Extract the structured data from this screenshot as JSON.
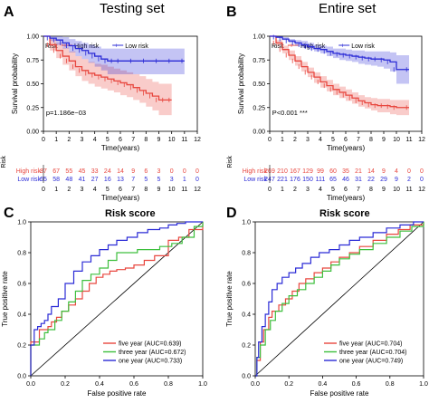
{
  "panels": {
    "A": {
      "letter": "A",
      "title": "Testing set"
    },
    "B": {
      "letter": "B",
      "title": "Entire set"
    },
    "C": {
      "letter": "C",
      "title": "Risk score"
    },
    "D": {
      "letter": "D",
      "title": "Risk score"
    }
  },
  "colors": {
    "high": "#e8473f",
    "low": "#2b2bd6",
    "five": "#e8473f",
    "three": "#3dbf3d",
    "one": "#2b2bd6",
    "diag": "#000000"
  },
  "chart_data": [
    {
      "id": "A",
      "type": "line",
      "title": "Testing set",
      "xlabel": "Time(years)",
      "ylabel": "Survival probability",
      "xlim": [
        0,
        12
      ],
      "ylim": [
        0,
        1
      ],
      "xticks": [
        "0",
        "1",
        "2",
        "3",
        "4",
        "5",
        "6",
        "7",
        "8",
        "9",
        "10",
        "11",
        "12"
      ],
      "yticks": [
        "0.00",
        "0.25",
        "0.50",
        "0.75",
        "1.00"
      ],
      "legend_title": "Risk",
      "series": [
        {
          "name": "High risk",
          "x": [
            0,
            0.5,
            1,
            1.5,
            2,
            2.5,
            3,
            3.5,
            4,
            4.5,
            5,
            5.5,
            6,
            6.5,
            7,
            7.5,
            8,
            8.5,
            9,
            9.5,
            10
          ],
          "y": [
            1,
            0.91,
            0.85,
            0.79,
            0.74,
            0.68,
            0.64,
            0.61,
            0.59,
            0.57,
            0.55,
            0.53,
            0.51,
            0.49,
            0.46,
            0.43,
            0.4,
            0.37,
            0.33,
            0.33,
            0.33
          ],
          "lo": [
            1,
            0.85,
            0.77,
            0.7,
            0.64,
            0.58,
            0.53,
            0.5,
            0.47,
            0.45,
            0.43,
            0.41,
            0.38,
            0.36,
            0.33,
            0.3,
            0.26,
            0.22,
            0.17,
            0.17,
            0.17
          ],
          "hi": [
            1,
            0.97,
            0.93,
            0.88,
            0.84,
            0.79,
            0.76,
            0.73,
            0.71,
            0.7,
            0.68,
            0.66,
            0.64,
            0.62,
            0.6,
            0.58,
            0.55,
            0.52,
            0.5,
            0.5,
            0.5
          ]
        },
        {
          "name": "Low risk",
          "x": [
            0,
            0.5,
            1,
            1.5,
            2,
            2.5,
            3,
            3.5,
            4,
            4.5,
            5,
            5.5,
            6,
            7,
            8,
            9,
            10,
            11
          ],
          "y": [
            1,
            0.98,
            0.96,
            0.93,
            0.9,
            0.87,
            0.85,
            0.82,
            0.79,
            0.76,
            0.74,
            0.74,
            0.74,
            0.74,
            0.74,
            0.74,
            0.74,
            0.74
          ],
          "lo": [
            1,
            0.95,
            0.91,
            0.87,
            0.83,
            0.79,
            0.76,
            0.72,
            0.68,
            0.64,
            0.6,
            0.6,
            0.6,
            0.6,
            0.6,
            0.6,
            0.6,
            0.6
          ],
          "hi": [
            1,
            1,
            1,
            0.99,
            0.97,
            0.95,
            0.93,
            0.91,
            0.89,
            0.87,
            0.87,
            0.87,
            0.87,
            0.87,
            0.87,
            0.87,
            0.87,
            0.87
          ]
        }
      ],
      "annotation": "p=1.186e−03",
      "risk_table": {
        "label": "Risk",
        "rows": [
          {
            "name": "High risk",
            "counts": [
              "87",
              "67",
              "55",
              "45",
              "33",
              "24",
              "14",
              "9",
              "6",
              "3",
              "0",
              "0",
              "0"
            ]
          },
          {
            "name": "Low risk",
            "counts": [
              "65",
              "58",
              "48",
              "41",
              "27",
              "16",
              "13",
              "7",
              "5",
              "5",
              "3",
              "1",
              "0"
            ]
          }
        ]
      }
    },
    {
      "id": "B",
      "type": "line",
      "title": "Entire set",
      "xlabel": "Time(years)",
      "ylabel": "Survival probability",
      "xlim": [
        0,
        12
      ],
      "ylim": [
        0,
        1
      ],
      "xticks": [
        "0",
        "1",
        "2",
        "3",
        "4",
        "5",
        "6",
        "7",
        "8",
        "9",
        "10",
        "11",
        "12"
      ],
      "yticks": [
        "0.00",
        "0.25",
        "0.50",
        "0.75",
        "1.00"
      ],
      "legend_title": "Risk",
      "series": [
        {
          "name": "High risk",
          "x": [
            0,
            0.5,
            1,
            1.5,
            2,
            2.5,
            3,
            3.5,
            4,
            4.5,
            5,
            5.5,
            6,
            6.5,
            7,
            7.5,
            8,
            8.5,
            9,
            9.5,
            10,
            11
          ],
          "y": [
            1,
            0.93,
            0.86,
            0.8,
            0.74,
            0.68,
            0.62,
            0.57,
            0.52,
            0.48,
            0.44,
            0.41,
            0.38,
            0.35,
            0.32,
            0.3,
            0.28,
            0.27,
            0.27,
            0.26,
            0.25,
            0.25
          ],
          "lo": [
            1,
            0.9,
            0.82,
            0.75,
            0.69,
            0.63,
            0.57,
            0.51,
            0.46,
            0.42,
            0.38,
            0.35,
            0.32,
            0.29,
            0.26,
            0.24,
            0.22,
            0.2,
            0.2,
            0.18,
            0.17,
            0.17
          ],
          "hi": [
            1,
            0.96,
            0.9,
            0.85,
            0.79,
            0.73,
            0.67,
            0.62,
            0.58,
            0.54,
            0.5,
            0.47,
            0.44,
            0.41,
            0.38,
            0.36,
            0.35,
            0.34,
            0.34,
            0.33,
            0.33,
            0.33
          ]
        },
        {
          "name": "Low risk",
          "x": [
            0,
            0.5,
            1,
            1.5,
            2,
            2.5,
            3,
            3.5,
            4,
            4.5,
            5,
            5.5,
            6,
            6.5,
            7,
            7.5,
            8,
            8.5,
            9,
            9.5,
            10,
            11
          ],
          "y": [
            1,
            0.99,
            0.97,
            0.95,
            0.93,
            0.91,
            0.89,
            0.87,
            0.86,
            0.84,
            0.82,
            0.81,
            0.8,
            0.79,
            0.78,
            0.77,
            0.76,
            0.76,
            0.75,
            0.73,
            0.65,
            0.65
          ],
          "lo": [
            1,
            0.98,
            0.96,
            0.93,
            0.9,
            0.88,
            0.86,
            0.84,
            0.82,
            0.79,
            0.77,
            0.75,
            0.74,
            0.73,
            0.71,
            0.7,
            0.69,
            0.68,
            0.66,
            0.63,
            0.5,
            0.5
          ],
          "hi": [
            1,
            1,
            0.99,
            0.97,
            0.96,
            0.95,
            0.93,
            0.91,
            0.9,
            0.89,
            0.87,
            0.87,
            0.86,
            0.85,
            0.85,
            0.84,
            0.84,
            0.84,
            0.84,
            0.83,
            0.8,
            0.8
          ]
        }
      ],
      "annotation": "P<0.001 ***",
      "risk_table": {
        "label": "Risk",
        "rows": [
          {
            "name": "High risk",
            "counts": [
              "269",
              "210",
              "167",
              "129",
              "99",
              "60",
              "35",
              "21",
              "14",
              "9",
              "4",
              "0",
              "0"
            ]
          },
          {
            "name": "Low risk",
            "counts": [
              "247",
              "221",
              "176",
              "150",
              "111",
              "65",
              "46",
              "31",
              "22",
              "29",
              "9",
              "2",
              "0"
            ]
          }
        ]
      }
    },
    {
      "id": "C",
      "type": "line",
      "title": "Risk score",
      "xlabel": "False positive rate",
      "ylabel": "True positive rate",
      "xlim": [
        0,
        1
      ],
      "ylim": [
        0,
        1
      ],
      "xticks": [
        "0.0",
        "0.2",
        "0.4",
        "0.6",
        "0.8",
        "1.0"
      ],
      "yticks": [
        "0.0",
        "0.2",
        "0.4",
        "0.6",
        "0.8",
        "1.0"
      ],
      "series": [
        {
          "name": "five year (AUC=0.639)",
          "key": "five",
          "x": [
            0,
            0,
            0.05,
            0.05,
            0.1,
            0.12,
            0.15,
            0.18,
            0.22,
            0.26,
            0.3,
            0.34,
            0.38,
            0.42,
            0.46,
            0.5,
            0.55,
            0.6,
            0.66,
            0.72,
            0.8,
            0.86,
            0.92,
            1.0
          ],
          "y": [
            0,
            0.22,
            0.25,
            0.3,
            0.32,
            0.35,
            0.38,
            0.42,
            0.46,
            0.5,
            0.55,
            0.6,
            0.64,
            0.66,
            0.68,
            0.69,
            0.7,
            0.72,
            0.75,
            0.78,
            0.88,
            0.9,
            0.95,
            1.0
          ]
        },
        {
          "name": "three year (AUC=0.672)",
          "key": "three",
          "x": [
            0,
            0,
            0.05,
            0.08,
            0.1,
            0.14,
            0.18,
            0.22,
            0.26,
            0.3,
            0.35,
            0.4,
            0.45,
            0.5,
            0.56,
            0.62,
            0.68,
            0.75,
            0.82,
            0.88,
            0.95,
            1.0
          ],
          "y": [
            0,
            0.2,
            0.24,
            0.28,
            0.3,
            0.36,
            0.42,
            0.48,
            0.55,
            0.62,
            0.66,
            0.7,
            0.75,
            0.8,
            0.8,
            0.82,
            0.82,
            0.84,
            0.86,
            0.9,
            0.97,
            1.0
          ]
        },
        {
          "name": "one year (AUC=0.733)",
          "key": "one",
          "x": [
            0,
            0,
            0.02,
            0.04,
            0.06,
            0.08,
            0.1,
            0.12,
            0.16,
            0.2,
            0.25,
            0.3,
            0.35,
            0.4,
            0.45,
            0.5,
            0.56,
            0.62,
            0.68,
            0.75,
            0.8,
            0.85,
            0.9,
            1.0
          ],
          "y": [
            0,
            0.2,
            0.3,
            0.32,
            0.34,
            0.36,
            0.4,
            0.45,
            0.5,
            0.6,
            0.68,
            0.74,
            0.78,
            0.82,
            0.85,
            0.88,
            0.9,
            0.93,
            0.95,
            0.96,
            0.98,
            0.99,
            1.0,
            1.0
          ]
        }
      ]
    },
    {
      "id": "D",
      "type": "line",
      "title": "Risk score",
      "xlabel": "False positive rate",
      "ylabel": "True positive rate",
      "xlim": [
        0,
        1
      ],
      "ylim": [
        0,
        1
      ],
      "xticks": [
        "0.0",
        "0.2",
        "0.4",
        "0.6",
        "0.8",
        "1.0"
      ],
      "yticks": [
        "0.0",
        "0.2",
        "0.4",
        "0.6",
        "0.8",
        "1.0"
      ],
      "series": [
        {
          "name": "five year (AUC=0.704)",
          "key": "five",
          "x": [
            0,
            0.01,
            0.03,
            0.05,
            0.08,
            0.1,
            0.14,
            0.18,
            0.22,
            0.26,
            0.3,
            0.35,
            0.4,
            0.45,
            0.5,
            0.56,
            0.62,
            0.7,
            0.78,
            0.85,
            0.92,
            1.0
          ],
          "y": [
            0,
            0.1,
            0.22,
            0.3,
            0.38,
            0.42,
            0.46,
            0.5,
            0.55,
            0.6,
            0.63,
            0.67,
            0.7,
            0.74,
            0.77,
            0.8,
            0.84,
            0.88,
            0.92,
            0.95,
            0.98,
            1.0
          ]
        },
        {
          "name": "three year (AUC=0.704)",
          "key": "three",
          "x": [
            0,
            0.01,
            0.03,
            0.06,
            0.09,
            0.12,
            0.16,
            0.2,
            0.25,
            0.3,
            0.35,
            0.4,
            0.45,
            0.5,
            0.56,
            0.62,
            0.7,
            0.78,
            0.86,
            0.93,
            1.0
          ],
          "y": [
            0,
            0.12,
            0.2,
            0.3,
            0.36,
            0.42,
            0.47,
            0.52,
            0.56,
            0.6,
            0.64,
            0.68,
            0.72,
            0.76,
            0.79,
            0.82,
            0.86,
            0.9,
            0.94,
            0.97,
            1.0
          ]
        },
        {
          "name": "one year (AUC=0.749)",
          "key": "one",
          "x": [
            0,
            0.01,
            0.02,
            0.04,
            0.06,
            0.08,
            0.1,
            0.13,
            0.16,
            0.2,
            0.24,
            0.28,
            0.33,
            0.38,
            0.44,
            0.5,
            0.56,
            0.62,
            0.7,
            0.78,
            0.86,
            0.94,
            1.0
          ],
          "y": [
            0,
            0.12,
            0.22,
            0.32,
            0.4,
            0.48,
            0.56,
            0.6,
            0.64,
            0.67,
            0.7,
            0.73,
            0.77,
            0.8,
            0.82,
            0.85,
            0.88,
            0.9,
            0.93,
            0.96,
            0.98,
            1.0,
            1.0
          ]
        }
      ]
    }
  ]
}
